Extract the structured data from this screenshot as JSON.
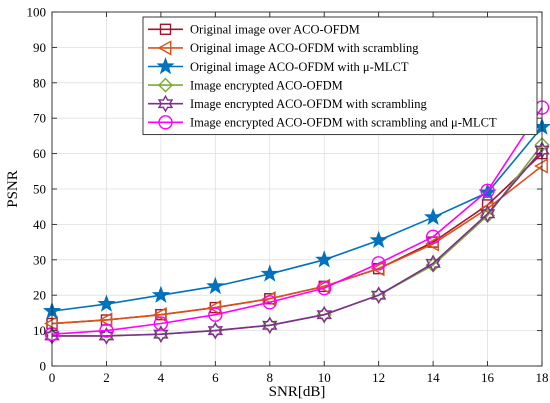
{
  "chart_data": {
    "type": "line",
    "title": "",
    "xlabel": "SNR[dB]",
    "ylabel": "PSNR",
    "xlim": [
      0,
      18
    ],
    "ylim": [
      0,
      100
    ],
    "grid": true,
    "legend_position": "top-right",
    "x": [
      0,
      2,
      4,
      6,
      8,
      10,
      12,
      14,
      16,
      18
    ],
    "x_ticks": [
      "0",
      "2",
      "4",
      "6",
      "8",
      "10",
      "12",
      "14",
      "16",
      "18"
    ],
    "y_ticks": [
      "0",
      "10",
      "20",
      "30",
      "40",
      "50",
      "60",
      "70",
      "80",
      "90",
      "100"
    ],
    "series": [
      {
        "name": "Original image over ACO-OFDM",
        "color": "#A2142F",
        "marker": "square",
        "values": [
          12,
          13,
          14.5,
          16.5,
          19,
          22.5,
          27.5,
          35,
          45.5,
          60
        ]
      },
      {
        "name": "Original image ACO-OFDM with scrambling",
        "color": "#D95319",
        "marker": "triangle-left",
        "values": [
          12,
          13,
          14.5,
          16.5,
          19,
          22.5,
          27.5,
          34.5,
          44.5,
          56.5
        ]
      },
      {
        "name": "Original image ACO-OFDM with μ-MLCT",
        "color": "#0072BD",
        "marker": "pentagram",
        "values": [
          15.5,
          17.5,
          20,
          22.5,
          26,
          30,
          35.5,
          42,
          49,
          67.5
        ]
      },
      {
        "name": "Image encrypted ACO-OFDM",
        "color": "#77AC30",
        "marker": "diamond",
        "values": [
          8.5,
          8.5,
          9,
          10,
          11.5,
          14.5,
          20,
          28.5,
          42.5,
          62.5
        ]
      },
      {
        "name": "Image encrypted ACO-OFDM with scrambling",
        "color": "#7E2F8E",
        "marker": "hexagram",
        "values": [
          8.5,
          8.5,
          9,
          10,
          11.5,
          14.5,
          20,
          29,
          43,
          61
        ]
      },
      {
        "name": "Image encrypted ACO-OFDM with scrambling and μ-MLCT",
        "color": "#FF00FF",
        "marker": "circle",
        "values": [
          9,
          10,
          12,
          14.5,
          18,
          22,
          29,
          36.5,
          49.5,
          73
        ]
      }
    ]
  }
}
